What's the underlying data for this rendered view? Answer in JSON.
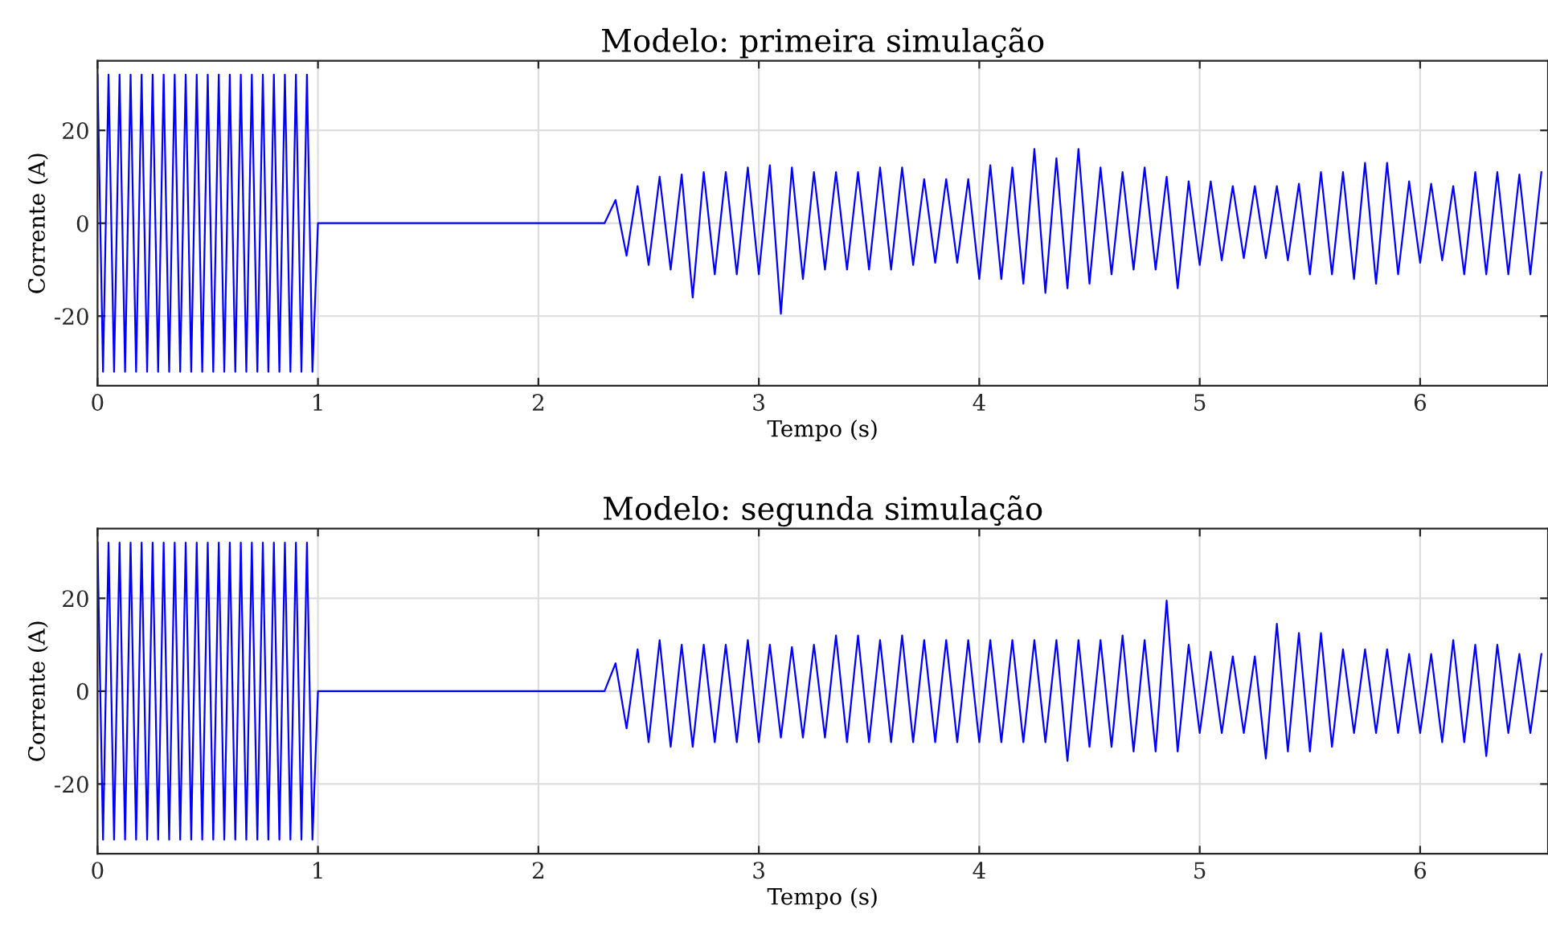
{
  "chart_data": [
    {
      "type": "line",
      "title": "Modelo: primeira simulação",
      "xlabel": "Tempo (s)",
      "ylabel": "Corrente (A)",
      "xlim": [
        0,
        6.58
      ],
      "xticks": [
        0,
        1,
        2,
        3,
        4,
        5,
        6
      ],
      "ylim": [
        -35,
        35
      ],
      "yticks": [
        -20,
        0,
        20
      ],
      "grid": true,
      "line_style": "solid",
      "marker": "none",
      "series": [
        {
          "color": "#0000ff",
          "x": [
            0,
            0.025,
            0.05,
            0.075,
            0.1,
            0.125,
            0.15,
            0.175,
            0.2,
            0.225,
            0.25,
            0.275,
            0.3,
            0.325,
            0.35,
            0.375,
            0.4,
            0.425,
            0.45,
            0.475,
            0.5,
            0.525,
            0.55,
            0.575,
            0.6,
            0.625,
            0.65,
            0.675,
            0.7,
            0.725,
            0.75,
            0.775,
            0.8,
            0.825,
            0.85,
            0.875,
            0.9,
            0.925,
            0.95,
            0.975,
            1.0,
            2.3,
            2.35,
            2.4,
            2.45,
            2.5,
            2.55,
            2.6,
            2.65,
            2.7,
            2.75,
            2.8,
            2.85,
            2.9,
            2.95,
            3.0,
            3.05,
            3.1,
            3.15,
            3.2,
            3.25,
            3.3,
            3.35,
            3.4,
            3.45,
            3.5,
            3.55,
            3.6,
            3.65,
            3.7,
            3.75,
            3.8,
            3.85,
            3.9,
            3.95,
            4.0,
            4.05,
            4.1,
            4.15,
            4.2,
            4.25,
            4.3,
            4.35,
            4.4,
            4.45,
            4.5,
            4.55,
            4.6,
            4.65,
            4.7,
            4.75,
            4.8,
            4.85,
            4.9,
            4.95,
            5.0,
            5.05,
            5.1,
            5.15,
            5.2,
            5.25,
            5.3,
            5.35,
            5.4,
            5.45,
            5.5,
            5.55,
            5.6,
            5.65,
            5.7,
            5.75,
            5.8,
            5.85,
            5.9,
            5.95,
            6.0,
            6.05,
            6.1,
            6.15,
            6.2,
            6.25,
            6.3,
            6.35,
            6.4,
            6.45,
            6.5,
            6.55
          ],
          "values": [
            32,
            -32,
            32,
            -32,
            32,
            -32,
            32,
            -32,
            32,
            -32,
            32,
            -32,
            32,
            -32,
            32,
            -32,
            32,
            -32,
            32,
            -32,
            32,
            -32,
            32,
            -32,
            32,
            -32,
            32,
            -32,
            32,
            -32,
            32,
            -32,
            32,
            -32,
            32,
            -32,
            32,
            -32,
            32,
            -32,
            0,
            0,
            5,
            -7,
            8,
            -9,
            10,
            -10,
            10.5,
            -16,
            11,
            -11,
            11,
            -11,
            12,
            -11,
            12.5,
            -19.5,
            12,
            -12,
            11,
            -10,
            11,
            -10,
            11,
            -10,
            12,
            -10,
            12,
            -9,
            9.5,
            -8.5,
            9.5,
            -8.5,
            9.5,
            -12,
            12.5,
            -12,
            12,
            -13,
            16,
            -15,
            14,
            -14,
            16,
            -13,
            12,
            -11,
            11,
            -10,
            12,
            -10,
            10,
            -14,
            9,
            -9,
            9,
            -8,
            8,
            -7.5,
            8,
            -7.5,
            8,
            -8,
            8.5,
            -11,
            11,
            -11,
            11,
            -12,
            13,
            -13,
            13,
            -11,
            9,
            -8.5,
            8.5,
            -8,
            8,
            -11,
            11,
            -11,
            11,
            -11,
            10.5,
            -11,
            11
          ]
        }
      ]
    },
    {
      "type": "line",
      "title": "Modelo: segunda simulação",
      "xlabel": "Tempo (s)",
      "ylabel": "Corrente (A)",
      "xlim": [
        0,
        6.58
      ],
      "xticks": [
        0,
        1,
        2,
        3,
        4,
        5,
        6
      ],
      "ylim": [
        -35,
        35
      ],
      "yticks": [
        -20,
        0,
        20
      ],
      "grid": true,
      "line_style": "solid",
      "marker": "none",
      "series": [
        {
          "color": "#0000ff",
          "x": [
            0,
            0.025,
            0.05,
            0.075,
            0.1,
            0.125,
            0.15,
            0.175,
            0.2,
            0.225,
            0.25,
            0.275,
            0.3,
            0.325,
            0.35,
            0.375,
            0.4,
            0.425,
            0.45,
            0.475,
            0.5,
            0.525,
            0.55,
            0.575,
            0.6,
            0.625,
            0.65,
            0.675,
            0.7,
            0.725,
            0.75,
            0.775,
            0.8,
            0.825,
            0.85,
            0.875,
            0.9,
            0.925,
            0.95,
            0.975,
            1.0,
            2.3,
            2.35,
            2.4,
            2.45,
            2.5,
            2.55,
            2.6,
            2.65,
            2.7,
            2.75,
            2.8,
            2.85,
            2.9,
            2.95,
            3.0,
            3.05,
            3.1,
            3.15,
            3.2,
            3.25,
            3.3,
            3.35,
            3.4,
            3.45,
            3.5,
            3.55,
            3.6,
            3.65,
            3.7,
            3.75,
            3.8,
            3.85,
            3.9,
            3.95,
            4.0,
            4.05,
            4.1,
            4.15,
            4.2,
            4.25,
            4.3,
            4.35,
            4.4,
            4.45,
            4.5,
            4.55,
            4.6,
            4.65,
            4.7,
            4.75,
            4.8,
            4.85,
            4.9,
            4.95,
            5.0,
            5.05,
            5.1,
            5.15,
            5.2,
            5.25,
            5.3,
            5.35,
            5.4,
            5.45,
            5.5,
            5.55,
            5.6,
            5.65,
            5.7,
            5.75,
            5.8,
            5.85,
            5.9,
            5.95,
            6.0,
            6.05,
            6.1,
            6.15,
            6.2,
            6.25,
            6.3,
            6.35,
            6.4,
            6.45,
            6.5,
            6.55
          ],
          "values": [
            32,
            -32,
            32,
            -32,
            32,
            -32,
            32,
            -32,
            32,
            -32,
            32,
            -32,
            32,
            -32,
            32,
            -32,
            32,
            -32,
            32,
            -32,
            32,
            -32,
            32,
            -32,
            32,
            -32,
            32,
            -32,
            32,
            -32,
            32,
            -32,
            32,
            -32,
            32,
            -32,
            32,
            -32,
            32,
            -32,
            0,
            0,
            6,
            -8,
            9,
            -11,
            11,
            -12,
            10,
            -12,
            10,
            -11,
            10,
            -11,
            11,
            -11,
            10,
            -10,
            9.5,
            -10,
            10,
            -10,
            12,
            -11,
            12,
            -11,
            11,
            -11,
            12,
            -11,
            11,
            -11,
            11,
            -11,
            11,
            -11,
            11,
            -11,
            11,
            -11,
            11,
            -11,
            11,
            -15,
            11,
            -12,
            11,
            -12,
            12,
            -13,
            11,
            -13,
            19.5,
            -13,
            10,
            -9,
            8.5,
            -9,
            7.5,
            -9,
            7.5,
            -14.5,
            14.5,
            -13,
            12.5,
            -13,
            12.5,
            -12,
            9,
            -9,
            9,
            -9,
            9,
            -9,
            8,
            -9,
            8,
            -11,
            11,
            -11,
            10,
            -14,
            10,
            -9,
            8,
            -9,
            8
          ]
        }
      ]
    }
  ]
}
